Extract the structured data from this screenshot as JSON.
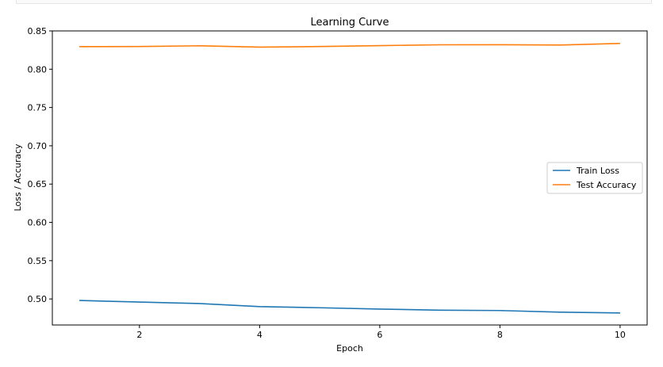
{
  "chart_data": {
    "type": "line",
    "title": "Learning Curve",
    "xlabel": "Epoch",
    "ylabel": "Loss / Accuracy",
    "x": [
      1,
      2,
      3,
      4,
      5,
      6,
      7,
      8,
      9,
      10
    ],
    "xlim": [
      0.55,
      10.45
    ],
    "ylim": [
      0.466,
      0.85
    ],
    "xticks": [
      2,
      4,
      6,
      8,
      10
    ],
    "yticks": [
      0.5,
      0.55,
      0.6,
      0.65,
      0.7,
      0.75,
      0.8,
      0.85
    ],
    "ytick_labels": [
      "0.50",
      "0.55",
      "0.60",
      "0.65",
      "0.70",
      "0.75",
      "0.80",
      "0.85"
    ],
    "grid": false,
    "legend_position": "center-right",
    "series": [
      {
        "name": "Train Loss",
        "color": "#1f77b4",
        "values": [
          0.498,
          0.496,
          0.494,
          0.49,
          0.4885,
          0.4868,
          0.4853,
          0.4849,
          0.4828,
          0.4817
        ]
      },
      {
        "name": "Test Accuracy",
        "color": "#ff7f0e",
        "values": [
          0.8295,
          0.8296,
          0.8306,
          0.8288,
          0.8296,
          0.8308,
          0.8319,
          0.832,
          0.8316,
          0.8336
        ]
      }
    ]
  }
}
